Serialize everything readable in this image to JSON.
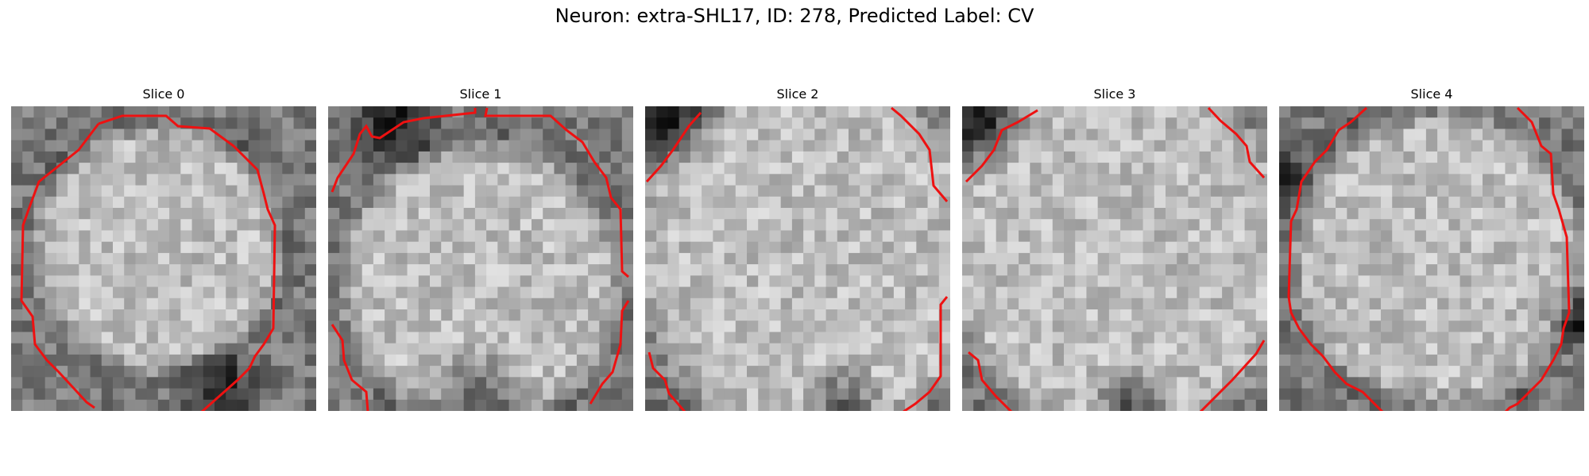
{
  "figure": {
    "title": "Neuron: extra-SHL17, ID: 278, Predicted Label: CV",
    "contour_color": "#ee1111",
    "panels": [
      {
        "title": "Slice 0"
      },
      {
        "title": "Slice 1"
      },
      {
        "title": "Slice 2"
      },
      {
        "title": "Slice 3"
      },
      {
        "title": "Slice 4"
      }
    ]
  }
}
